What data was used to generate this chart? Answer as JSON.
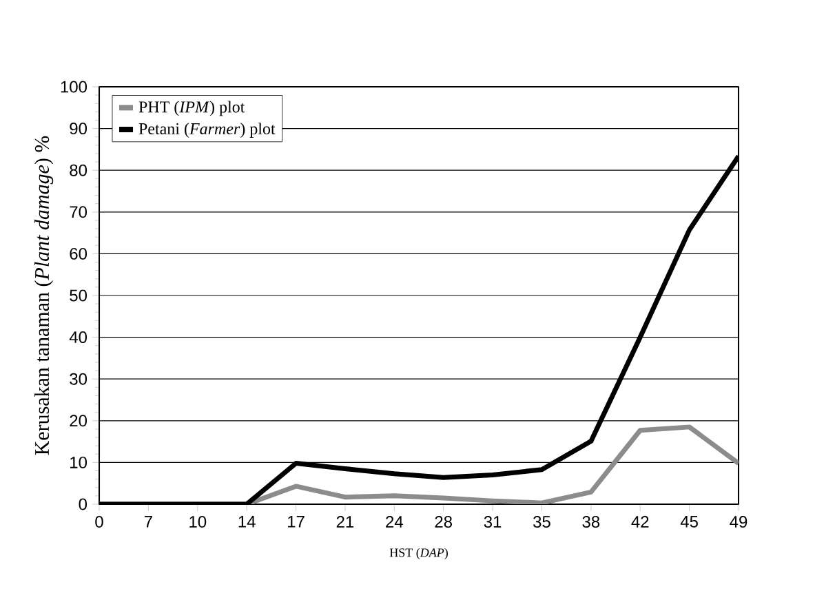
{
  "chart_data": {
    "type": "line",
    "xlabel": "HST (*DAP*)",
    "ylabel": "Kerusakan tanaman (*Plant damage*) %",
    "categories": [
      "0",
      "7",
      "10",
      "14",
      "17",
      "21",
      "24",
      "28",
      "31",
      "35",
      "38",
      "42",
      "45",
      "49"
    ],
    "series": [
      {
        "name": "PHT (*IPM*) plot",
        "color": "#8c8c8c",
        "values": [
          0,
          0,
          0,
          0,
          4.3,
          1.7,
          2.0,
          1.5,
          0.8,
          0.3,
          2.9,
          17.7,
          18.5,
          9.8
        ]
      },
      {
        "name": "Petani (*Farmer*) plot",
        "color": "#000000",
        "values": [
          0,
          0,
          0,
          0,
          9.8,
          8.5,
          7.3,
          6.4,
          7.0,
          8.3,
          15.1,
          40,
          65.7,
          83.4
        ]
      }
    ],
    "ylim": [
      0,
      100
    ],
    "yticks": [
      0,
      10,
      20,
      30,
      40,
      50,
      60,
      70,
      80,
      90,
      100
    ],
    "grid": "y",
    "legend": "top left",
    "line_style": "solid"
  }
}
